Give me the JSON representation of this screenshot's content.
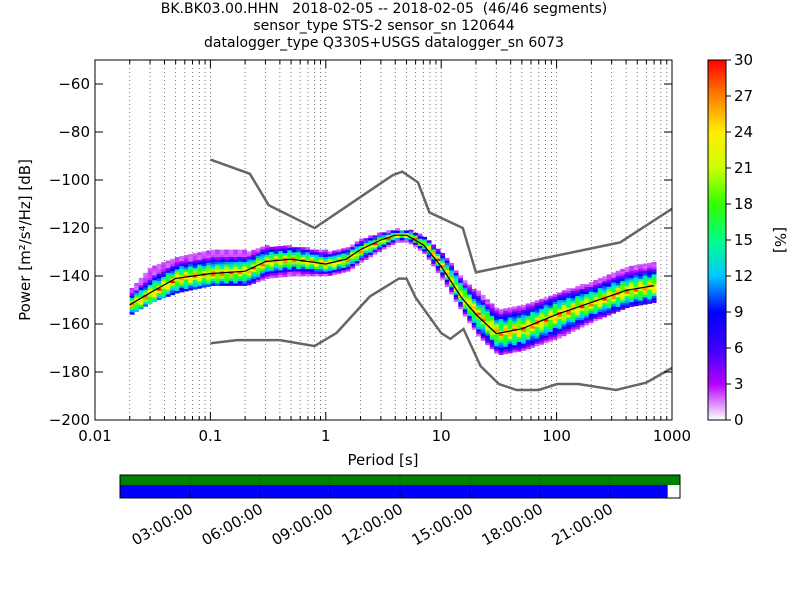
{
  "figure": {
    "title_lines": [
      "BK.BK03.00.HHN   2018-02-05 -- 2018-02-05  (46/46 segments)",
      "sensor_type STS-2 sensor_sn 120644",
      "datalogger_type Q330S+USGS datalogger_sn 6073"
    ]
  },
  "chart_data": {
    "type": "heatmap",
    "subtype": "probabilistic power spectral density",
    "xlabel": "Period [s]",
    "ylabel": "Power [m²/s⁴/Hz] [dB]",
    "xscale": "log",
    "xlim": [
      0.01,
      1000
    ],
    "ylim": [
      -200,
      -50
    ],
    "x_ticks": [
      0.01,
      0.1,
      1,
      10,
      100,
      1000
    ],
    "x_tick_labels": [
      "0.01",
      "0.1",
      "1",
      "10",
      "100",
      "1000"
    ],
    "y_ticks": [
      -200,
      -180,
      -160,
      -140,
      -120,
      -100,
      -80,
      -60
    ],
    "y_tick_labels": [
      "−200",
      "−180",
      "−160",
      "−140",
      "−120",
      "−100",
      "−80",
      "−60"
    ],
    "grid": "dotted vertical lines at log decade subdivisions",
    "colorbar": {
      "label": "[%]",
      "range": [
        0,
        30
      ],
      "ticks": [
        0,
        3,
        6,
        9,
        12,
        15,
        18,
        21,
        24,
        27,
        30
      ],
      "colormap": [
        "#ffffff",
        "#b300ff",
        "#3a00ff",
        "#0000ff",
        "#00c8ff",
        "#00ff88",
        "#33ff00",
        "#ccff00",
        "#ffee00",
        "#ff8000",
        "#ff0000"
      ]
    },
    "mode_curve": {
      "name": "mode",
      "color": "#000000",
      "x": [
        0.02,
        0.03,
        0.05,
        0.1,
        0.2,
        0.3,
        0.5,
        1,
        1.5,
        2,
        3,
        4,
        5,
        7,
        10,
        15,
        20,
        30,
        50,
        100,
        200,
        400,
        700
      ],
      "y": [
        -152,
        -147,
        -141,
        -139,
        -138,
        -134,
        -133,
        -135,
        -133,
        -129,
        -125,
        -123,
        -123,
        -127,
        -136,
        -149,
        -156,
        -164,
        -162,
        -156,
        -151,
        -146,
        -144
      ]
    },
    "density_envelope": {
      "x": [
        0.02,
        0.03,
        0.05,
        0.1,
        0.2,
        0.3,
        0.5,
        1,
        1.5,
        2,
        3,
        4,
        5,
        7,
        10,
        15,
        20,
        30,
        50,
        100,
        200,
        400,
        700
      ],
      "upper": [
        -145,
        -136,
        -132,
        -129,
        -130,
        -128,
        -128,
        -130,
        -128,
        -125,
        -122,
        -121,
        -121,
        -124,
        -131,
        -142,
        -147,
        -154,
        -152,
        -147,
        -143,
        -136,
        -134
      ],
      "lower": [
        -156,
        -151,
        -147,
        -144,
        -144,
        -141,
        -140,
        -140,
        -138,
        -134,
        -129,
        -126,
        -126,
        -131,
        -142,
        -156,
        -165,
        -173,
        -171,
        -166,
        -159,
        -153,
        -151
      ]
    },
    "noise_models": [
      {
        "name": "NHNM",
        "color": "#666666",
        "x": [
          0.1,
          0.22,
          0.32,
          0.8,
          3.8,
          4.6,
          6.3,
          7.9,
          15.4,
          20,
          354.8,
          1000
        ],
        "y": [
          -91.5,
          -97.4,
          -110.5,
          -120,
          -98,
          -96.5,
          -101,
          -113.5,
          -120,
          -138.5,
          -126,
          -112
        ]
      },
      {
        "name": "NLNM",
        "color": "#666666",
        "x": [
          0.1,
          0.17,
          0.4,
          0.8,
          1.24,
          2.4,
          4.3,
          5,
          6,
          10,
          12,
          15.6,
          21.9,
          31.6,
          45,
          70,
          101,
          154,
          328,
          600,
          1000
        ],
        "y": [
          -168,
          -166.7,
          -166.7,
          -169.2,
          -163.7,
          -148.6,
          -141.1,
          -141.1,
          -149,
          -163.8,
          -166.2,
          -162.1,
          -177.5,
          -185,
          -187.5,
          -187.5,
          -185,
          -185,
          -187.5,
          -184.4,
          -178.3
        ]
      }
    ]
  },
  "timeline": {
    "tick_labels": [
      "03:00:00",
      "06:00:00",
      "09:00:00",
      "12:00:00",
      "15:00:00",
      "18:00:00",
      "21:00:00"
    ],
    "tick_hours": [
      3,
      6,
      9,
      12,
      15,
      18,
      21
    ],
    "span_hours": 24,
    "rows": [
      {
        "name": "data-availability",
        "color": "#008000",
        "coverage": [
          0,
          1.0
        ]
      },
      {
        "name": "psd-segments",
        "color": "#0000ff",
        "coverage": [
          0,
          0.978
        ]
      }
    ]
  }
}
